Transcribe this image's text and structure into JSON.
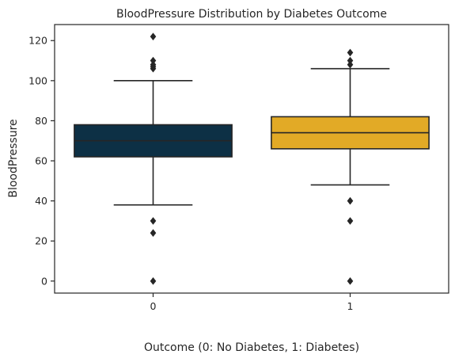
{
  "chart_data": {
    "type": "box",
    "title": "BloodPressure Distribution by Diabetes Outcome",
    "xlabel": "Outcome (0: No Diabetes, 1: Diabetes)",
    "ylabel": "BloodPressure",
    "ylim": [
      -6,
      128
    ],
    "yticks": [
      0,
      20,
      40,
      60,
      80,
      100,
      120
    ],
    "grid": false,
    "categories": [
      "0",
      "1"
    ],
    "boxes": [
      {
        "category": "0",
        "color": "#0d3045",
        "q1": 62,
        "median": 70,
        "q3": 78,
        "whisker_low": 38,
        "whisker_high": 100,
        "outliers": [
          0,
          24,
          30,
          106,
          107,
          108,
          110,
          122
        ]
      },
      {
        "category": "1",
        "color": "#e2aa26",
        "q1": 66,
        "median": 74,
        "q3": 82,
        "whisker_low": 48,
        "whisker_high": 106,
        "outliers": [
          0,
          30,
          40,
          108,
          110,
          114
        ]
      }
    ]
  }
}
